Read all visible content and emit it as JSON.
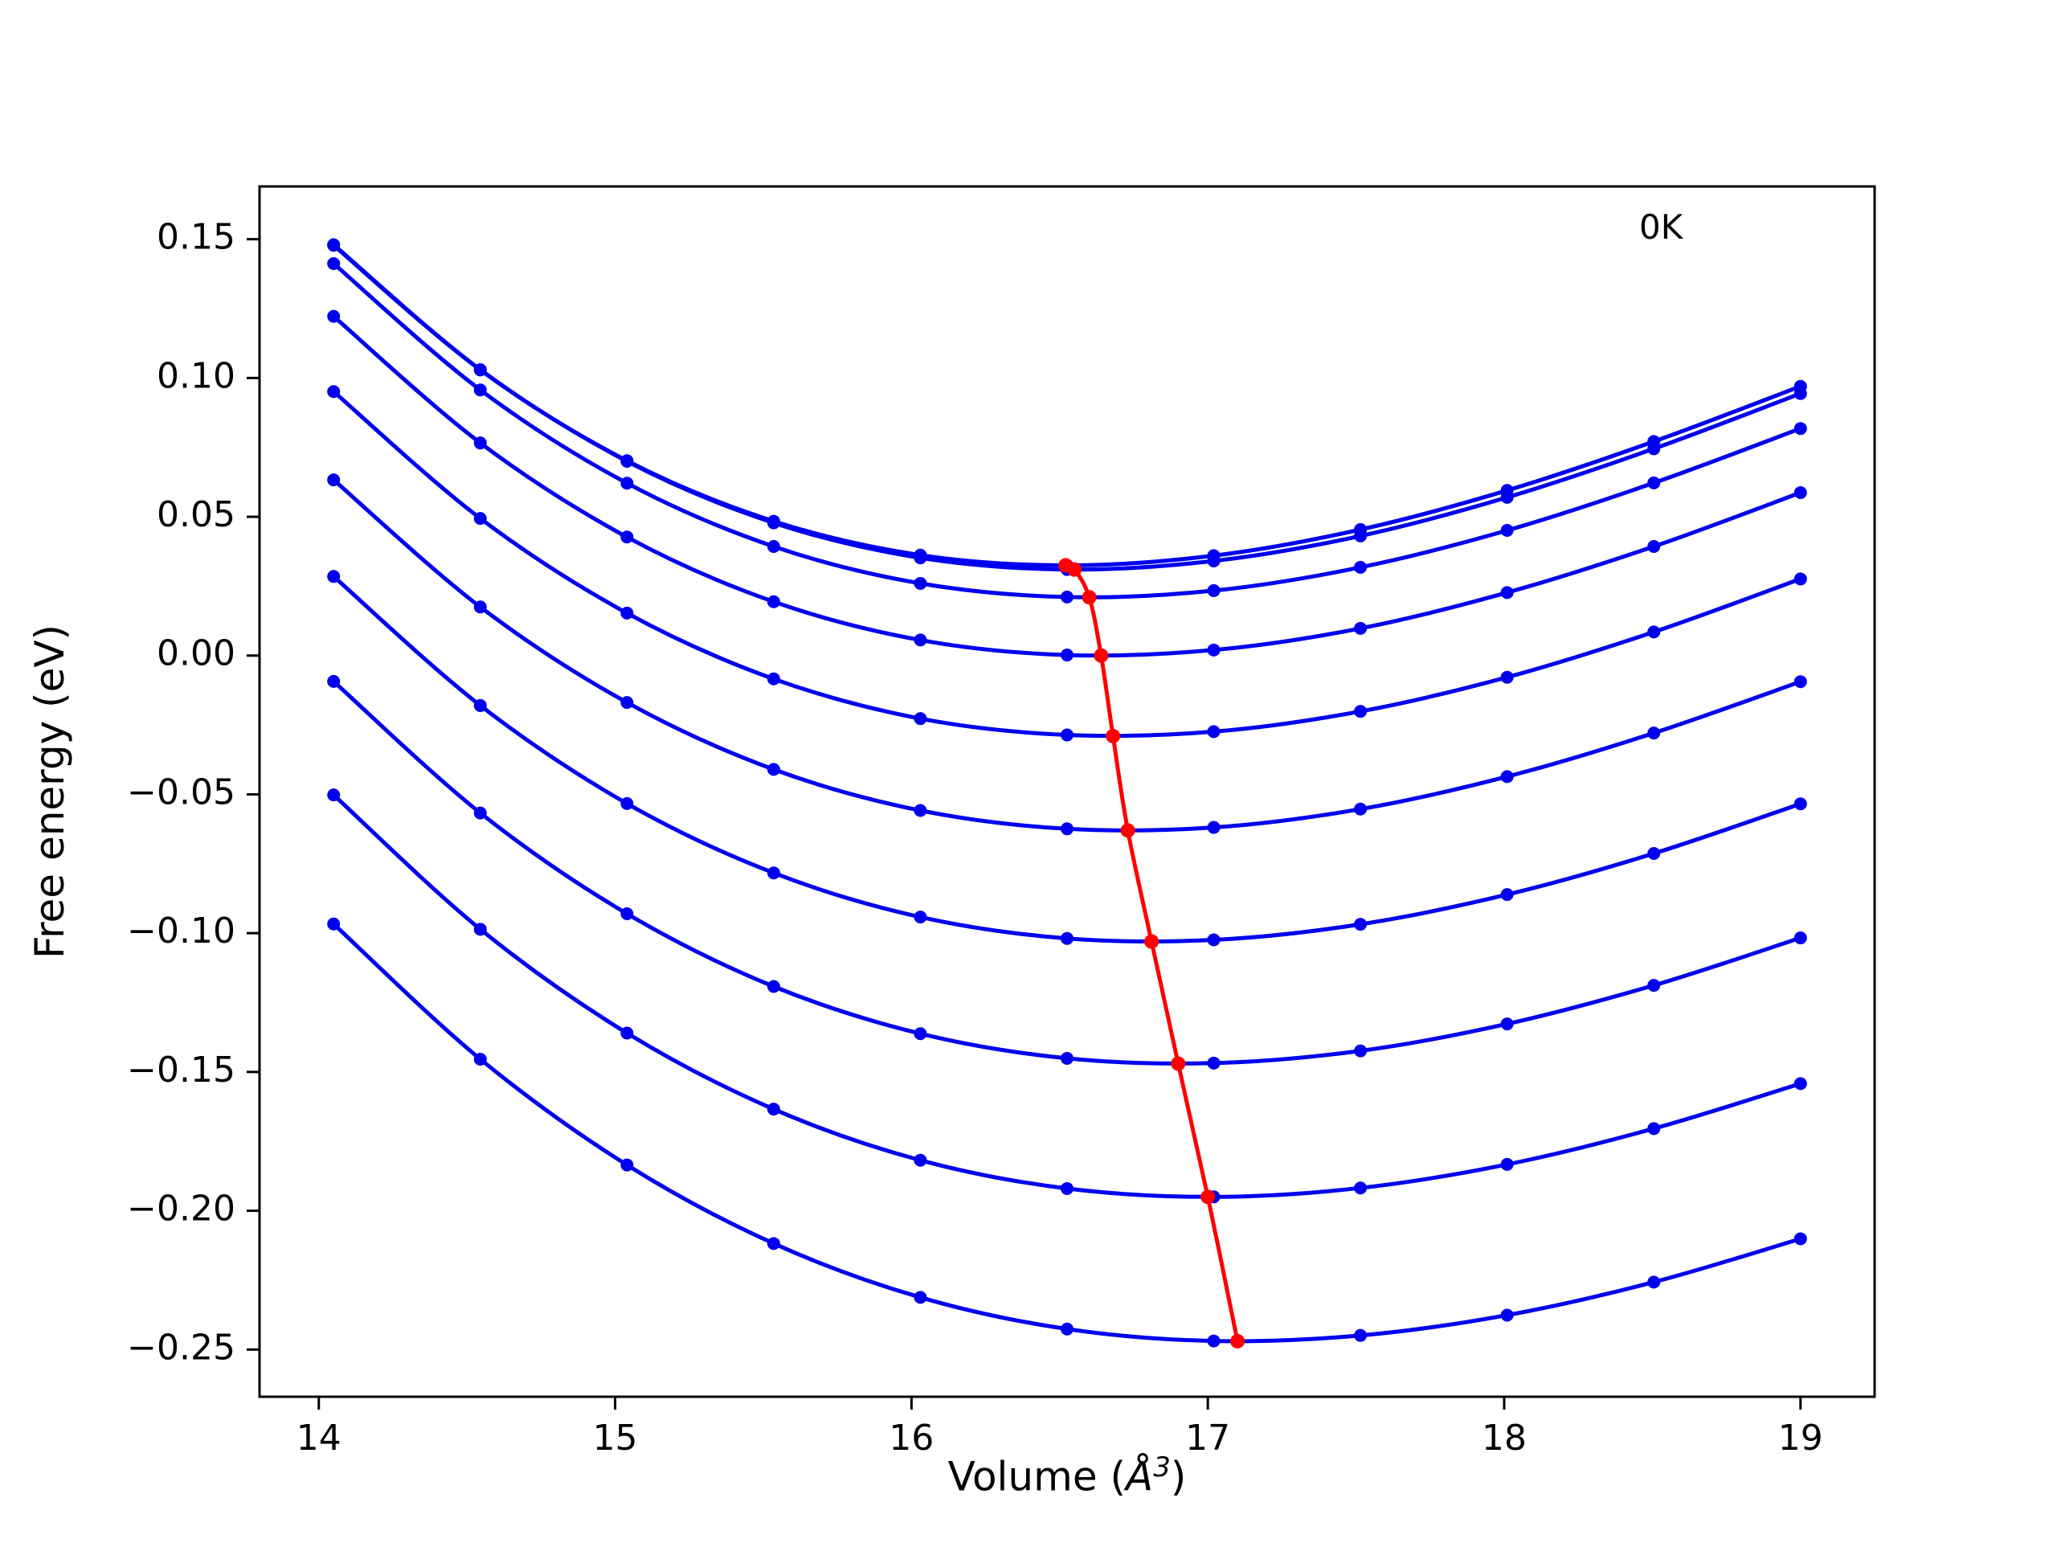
{
  "figure": {
    "annotation": "0K",
    "xlabel": {
      "prefix": "Volume (",
      "symbol": "Å",
      "exponent": "3",
      "suffix": ")"
    },
    "ylabel": "Free energy (eV)",
    "colors": {
      "curve": "#0000ee",
      "minima_line": "#ff0000",
      "axes": "#000000",
      "background": "#ffffff"
    }
  },
  "chart_data": {
    "type": "line",
    "title": "",
    "xlabel": "Volume (Å³)",
    "ylabel": "Free energy (eV)",
    "annotation": "0K",
    "grid": false,
    "legend": "none",
    "xlim": [
      13.8,
      19.25
    ],
    "ylim": [
      -0.267,
      0.169
    ],
    "xticks": [
      14,
      15,
      16,
      17,
      18,
      19
    ],
    "yticks": [
      -0.25,
      -0.2,
      -0.15,
      -0.1,
      -0.05,
      0.0,
      0.05,
      0.1,
      0.15
    ],
    "x": [
      14.05,
      14.545,
      15.04,
      15.535,
      16.03,
      16.525,
      17.02,
      17.515,
      18.01,
      18.505,
      19.0
    ],
    "series": [
      {
        "name": "curve-1",
        "values": [
          0.1478,
          0.1029,
          0.0702,
          0.0484,
          0.0362,
          0.0325,
          0.036,
          0.0454,
          0.0595,
          0.0771,
          0.097
        ]
      },
      {
        "name": "curve-2",
        "values": [
          0.148,
          0.103,
          0.07,
          0.0478,
          0.0352,
          0.031,
          0.0341,
          0.0431,
          0.057,
          0.0745,
          0.0944
        ]
      },
      {
        "name": "curve-3",
        "values": [
          0.1412,
          0.0957,
          0.0621,
          0.0393,
          0.026,
          0.0211,
          0.0234,
          0.0318,
          0.0451,
          0.0622,
          0.0818
        ]
      },
      {
        "name": "curve-4",
        "values": [
          0.1222,
          0.0766,
          0.0427,
          0.0194,
          0.0056,
          0.0002,
          0.002,
          0.0098,
          0.0227,
          0.0393,
          0.0587
        ]
      },
      {
        "name": "curve-5",
        "values": [
          0.0951,
          0.0494,
          0.0153,
          -0.0084,
          -0.0227,
          -0.0286,
          -0.0274,
          -0.0201,
          -0.0078,
          0.0085,
          0.0276
        ]
      },
      {
        "name": "curve-6",
        "values": [
          0.0633,
          0.0175,
          -0.0169,
          -0.041,
          -0.0558,
          -0.0624,
          -0.0619,
          -0.0553,
          -0.0436,
          -0.0279,
          -0.0094
        ]
      },
      {
        "name": "curve-7",
        "values": [
          0.0285,
          -0.018,
          -0.0533,
          -0.0783,
          -0.0942,
          -0.1019,
          -0.1024,
          -0.0968,
          -0.0861,
          -0.0713,
          -0.0534
        ]
      },
      {
        "name": "curve-8",
        "values": [
          -0.0093,
          -0.0567,
          -0.093,
          -0.1192,
          -0.1362,
          -0.1451,
          -0.1468,
          -0.1424,
          -0.1327,
          -0.1188,
          -0.1017
        ]
      },
      {
        "name": "curve-9",
        "values": [
          -0.0502,
          -0.0986,
          -0.136,
          -0.1634,
          -0.1818,
          -0.192,
          -0.195,
          -0.1918,
          -0.1833,
          -0.1704,
          -0.1542
        ]
      },
      {
        "name": "curve-10",
        "values": [
          -0.0967,
          -0.1454,
          -0.1835,
          -0.2118,
          -0.2312,
          -0.2426,
          -0.2469,
          -0.2449,
          -0.2376,
          -0.2257,
          -0.2101
        ]
      }
    ],
    "minima_line": {
      "x": [
        16.52,
        16.55,
        16.6,
        16.64,
        16.68,
        16.73,
        16.81,
        16.9,
        17.0,
        17.1
      ],
      "y": [
        0.0325,
        0.031,
        0.021,
        0.0,
        -0.029,
        -0.063,
        -0.103,
        -0.147,
        -0.195,
        -0.247
      ]
    }
  }
}
